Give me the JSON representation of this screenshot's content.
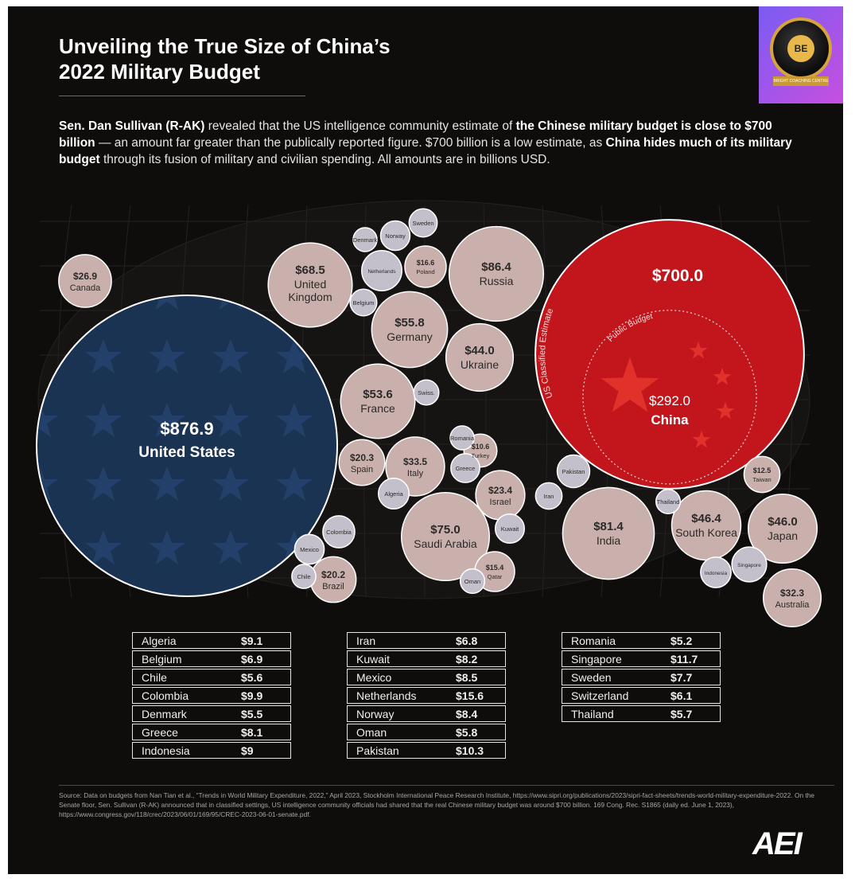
{
  "title": {
    "line1": "Unveiling the True Size of China’s",
    "line2": "2022 Military Budget"
  },
  "intro": {
    "p1": "Sen. Dan Sullivan (R-AK)",
    "p2": " revealed that the US intelligence community estimate of ",
    "p3": "the Chinese military budget is close to $700 billion",
    "p4": " — an amount far greater than the publically reported figure. $700 billion is a low estimate, as ",
    "p5": "China hides much of its military budget",
    "p6": " through its fusion of military and civilian spending. All amounts are in billions USD."
  },
  "badge": {
    "monogram": "BE",
    "ribbon": "BRIGHT COACHING CENTRE"
  },
  "chart_data": {
    "type": "bubble",
    "unit": "billions USD",
    "bubbles": [
      {
        "country": "United States",
        "value": 876.9,
        "label": "$876.9",
        "color": "#1b3352"
      },
      {
        "country": "China",
        "value": 292.0,
        "label": "$292.0",
        "classified_estimate": 700.0,
        "classified_label": "$700.0",
        "color": "#c3161c"
      },
      {
        "country": "Russia",
        "value": 86.4,
        "label": "$86.4"
      },
      {
        "country": "India",
        "value": 81.4,
        "label": "$81.4"
      },
      {
        "country": "Saudi Arabia",
        "value": 75.0,
        "label": "$75.0"
      },
      {
        "country": "United Kingdom",
        "value": 68.5,
        "label": "$68.5"
      },
      {
        "country": "Germany",
        "value": 55.8,
        "label": "$55.8"
      },
      {
        "country": "France",
        "value": 53.6,
        "label": "$53.6"
      },
      {
        "country": "South Korea",
        "value": 46.4,
        "label": "$46.4"
      },
      {
        "country": "Japan",
        "value": 46.0,
        "label": "$46.0"
      },
      {
        "country": "Ukraine",
        "value": 44.0,
        "label": "$44.0"
      },
      {
        "country": "Italy",
        "value": 33.5,
        "label": "$33.5"
      },
      {
        "country": "Australia",
        "value": 32.3,
        "label": "$32.3"
      },
      {
        "country": "Canada",
        "value": 26.9,
        "label": "$26.9"
      },
      {
        "country": "Israel",
        "value": 23.4,
        "label": "$23.4"
      },
      {
        "country": "Spain",
        "value": 20.3,
        "label": "$20.3"
      },
      {
        "country": "Brazil",
        "value": 20.2,
        "label": "$20.2"
      },
      {
        "country": "Poland",
        "value": 16.6,
        "label": "$16.6"
      },
      {
        "country": "Qatar",
        "value": 15.4,
        "label": "$15.4"
      },
      {
        "country": "Taiwan",
        "value": 12.5,
        "label": "$12.5"
      },
      {
        "country": "Turkey",
        "value": 10.6,
        "label": "$10.6"
      },
      {
        "country": "Pakistan",
        "value": 10.3
      },
      {
        "country": "Netherlands",
        "value": 15.6
      },
      {
        "country": "Singapore",
        "value": 11.7
      },
      {
        "country": "Colombia",
        "value": 9.9
      },
      {
        "country": "Algeria",
        "value": 9.1
      },
      {
        "country": "Indonesia",
        "value": 9
      },
      {
        "country": "Mexico",
        "value": 8.5
      },
      {
        "country": "Norway",
        "value": 8.4
      },
      {
        "country": "Kuwait",
        "value": 8.2
      },
      {
        "country": "Greece",
        "value": 8.1
      },
      {
        "country": "Sweden",
        "value": 7.7
      },
      {
        "country": "Belgium",
        "value": 6.9
      },
      {
        "country": "Iran",
        "value": 6.8
      },
      {
        "country": "Switzerland",
        "value": 6.1,
        "display": "Swiss."
      },
      {
        "country": "Oman",
        "value": 5.8
      },
      {
        "country": "Thailand",
        "value": 5.7
      },
      {
        "country": "Chile",
        "value": 5.6
      },
      {
        "country": "Denmark",
        "value": 5.5
      },
      {
        "country": "Romania",
        "value": 5.2
      }
    ],
    "annotations": {
      "classified": "US Classified Estimate",
      "public": "Public Budget"
    },
    "colors": {
      "other": "#c9b0ad",
      "small": "#c3c0cb",
      "us": "#1b3352",
      "china": "#c3161c"
    }
  },
  "tables": [
    [
      {
        "country": "Algeria",
        "value": "$9.1"
      },
      {
        "country": "Belgium",
        "value": "$6.9"
      },
      {
        "country": "Chile",
        "value": "$5.6"
      },
      {
        "country": "Colombia",
        "value": "$9.9"
      },
      {
        "country": "Denmark",
        "value": "$5.5"
      },
      {
        "country": "Greece",
        "value": "$8.1"
      },
      {
        "country": "Indonesia",
        "value": "$9"
      }
    ],
    [
      {
        "country": "Iran",
        "value": "$6.8"
      },
      {
        "country": "Kuwait",
        "value": "$8.2"
      },
      {
        "country": "Mexico",
        "value": "$8.5"
      },
      {
        "country": "Netherlands",
        "value": "$15.6"
      },
      {
        "country": "Norway",
        "value": "$8.4"
      },
      {
        "country": "Oman",
        "value": "$5.8"
      },
      {
        "country": "Pakistan",
        "value": "$10.3"
      }
    ],
    [
      {
        "country": "Romania",
        "value": "$5.2"
      },
      {
        "country": "Singapore",
        "value": "$11.7"
      },
      {
        "country": "Sweden",
        "value": "$7.7"
      },
      {
        "country": "Switzerland",
        "value": "$6.1"
      },
      {
        "country": "Thailand",
        "value": "$5.7"
      }
    ]
  ],
  "source": "Source: Data on budgets from Nan Tian et al., “Trends in World Military Expenditure, 2022,” April 2023, Stockholm International Peace Research Institute, https://www.sipri.org/publications/2023/sipri-fact-sheets/trends-world-military-expenditure-2022. On the Senate floor, Sen. Sullivan (R-AK) announced that in classified settings, US intelligence community officials had shared that the real Chinese military budget was around $700 billion. 169 Cong. Rec. S1865 (daily ed. June 1, 2023), https://www.congress.gov/118/crec/2023/06/01/169/95/CREC-2023-06-01-senate.pdf.",
  "logo": "AEI"
}
